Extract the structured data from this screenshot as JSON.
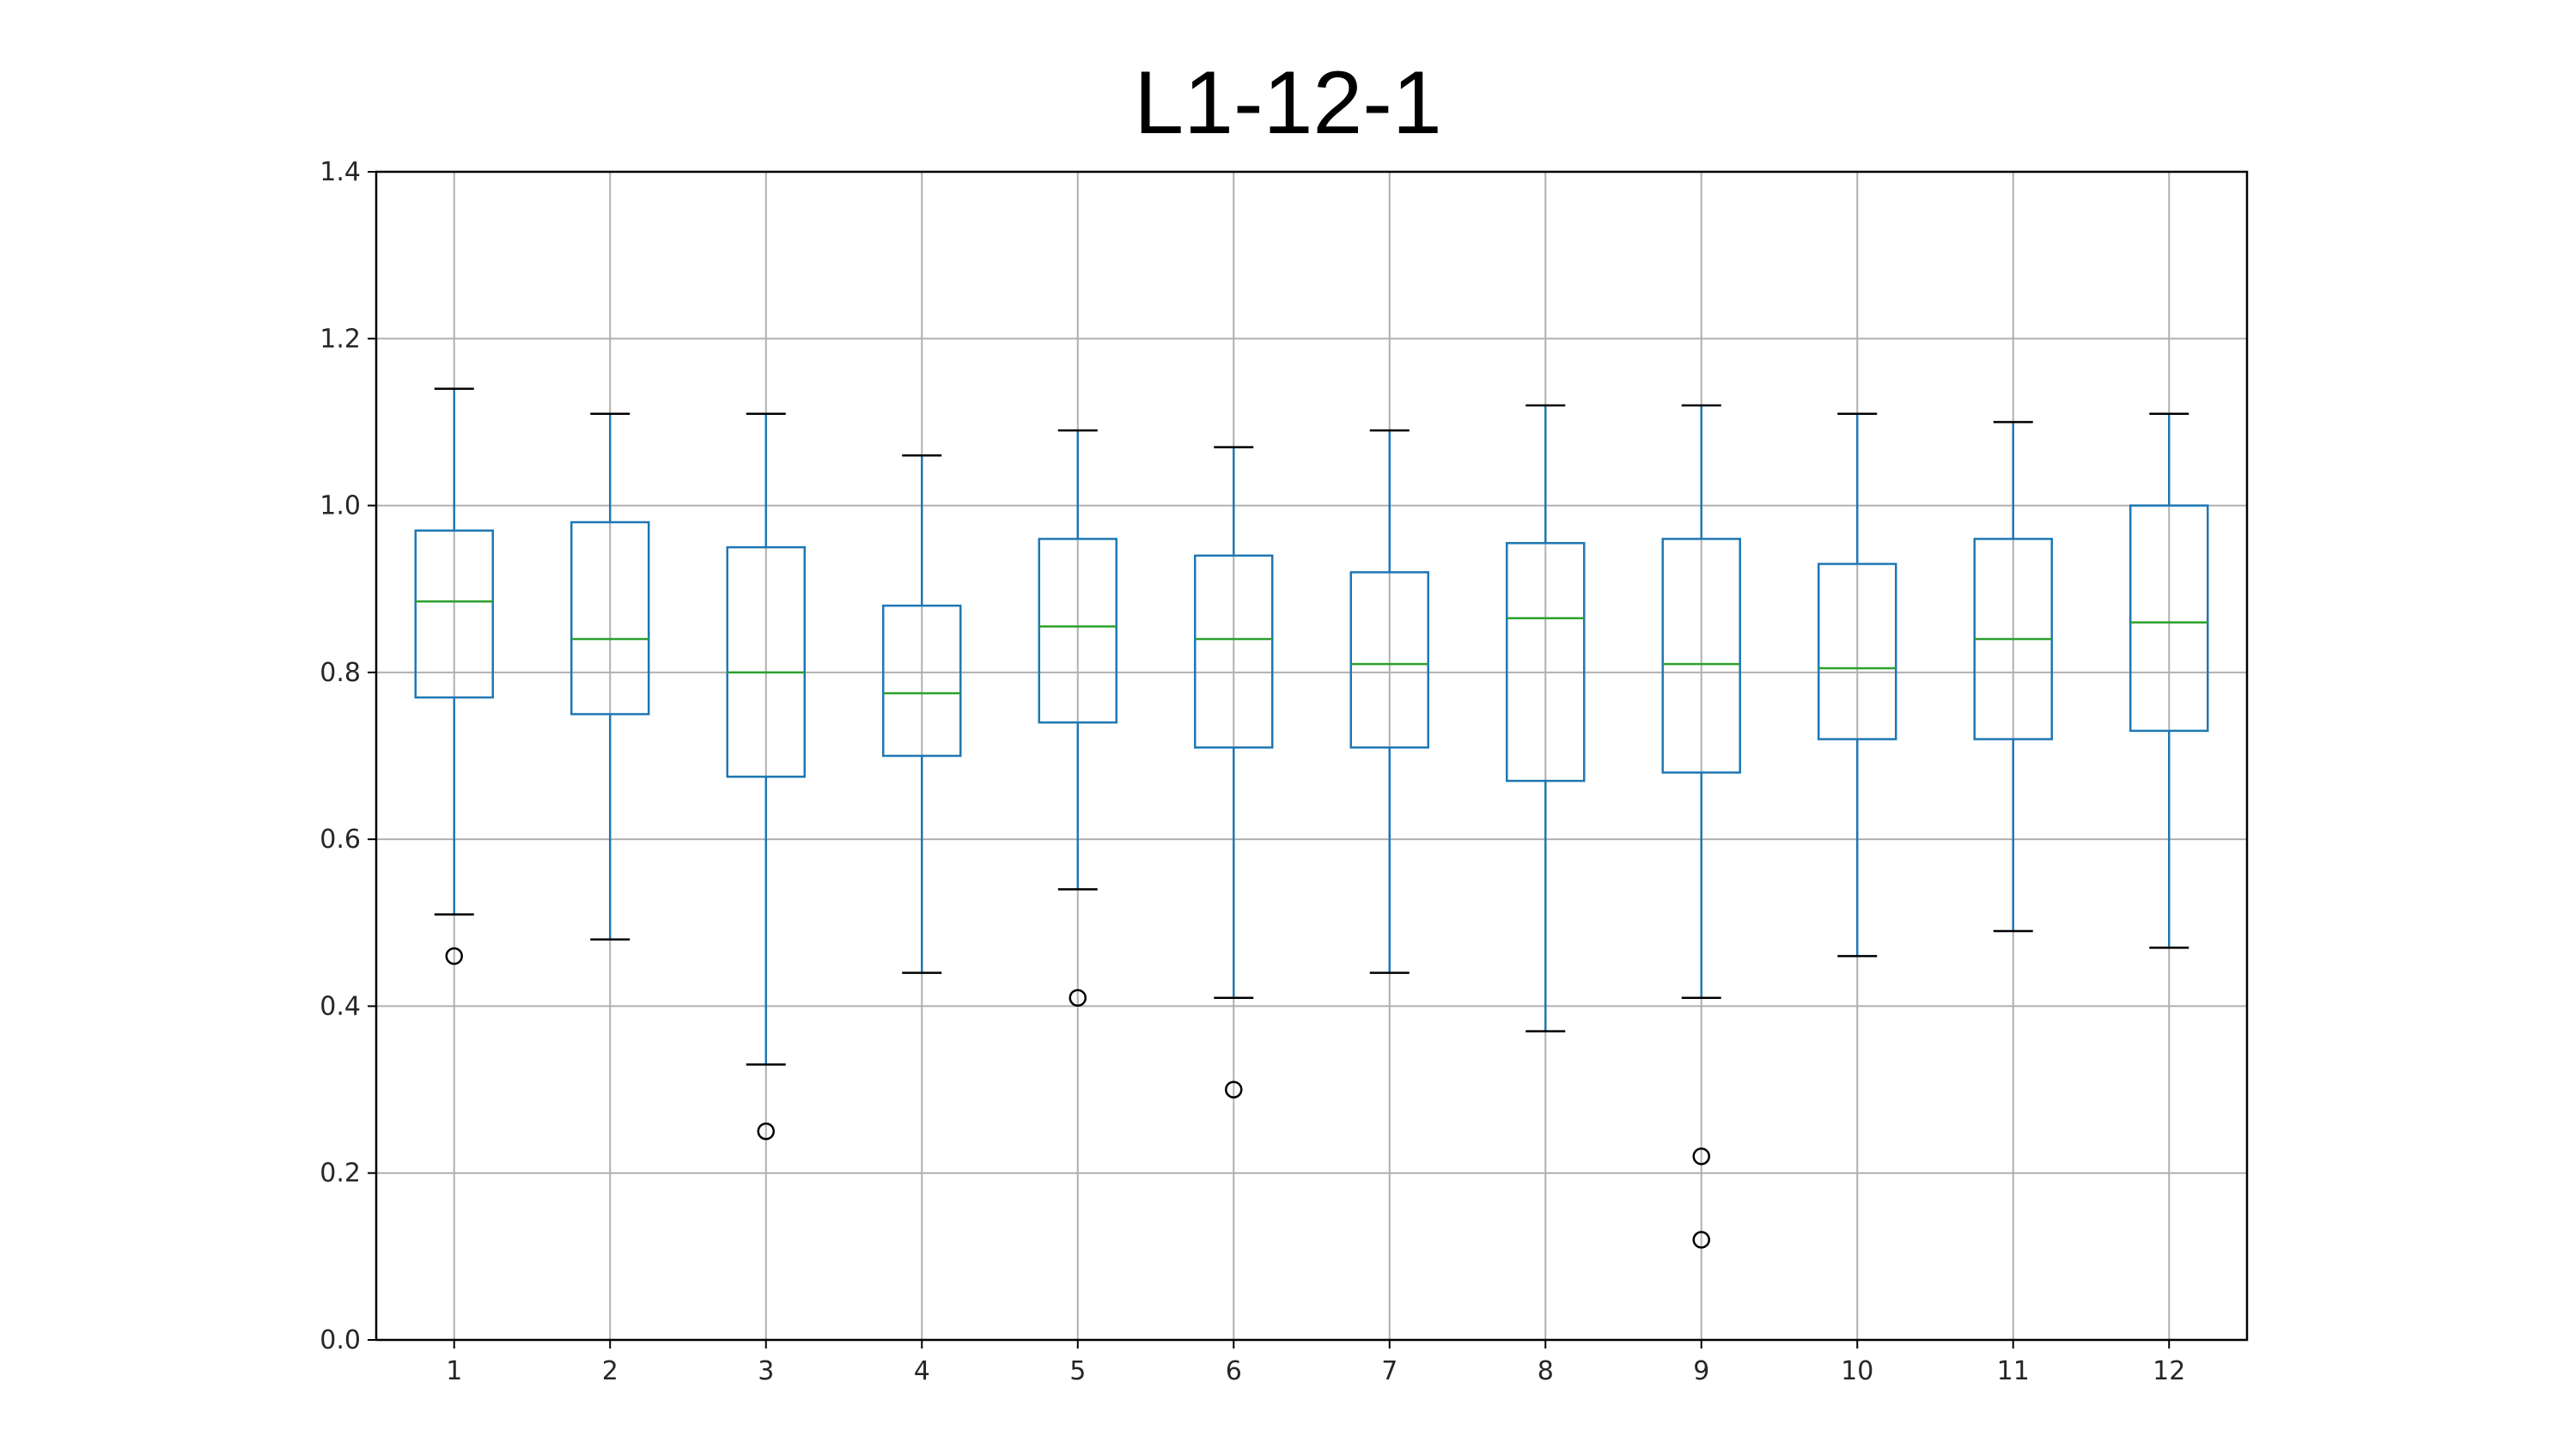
{
  "chart_data": {
    "type": "box",
    "title": "L1-12-1",
    "xlabel": "",
    "ylabel": "",
    "ylim": [
      0,
      1.4
    ],
    "yticks": [
      "0.0",
      "0.2",
      "0.4",
      "0.6",
      "0.8",
      "1.0",
      "1.2",
      "1.4"
    ],
    "categories": [
      "1",
      "2",
      "3",
      "4",
      "5",
      "6",
      "7",
      "8",
      "9",
      "10",
      "11",
      "12"
    ],
    "grid": true,
    "boxes": [
      {
        "label": "1",
        "whisker_low": 0.51,
        "q1": 0.77,
        "median": 0.885,
        "q3": 0.97,
        "whisker_high": 1.14,
        "outliers": [
          0.46
        ]
      },
      {
        "label": "2",
        "whisker_low": 0.48,
        "q1": 0.75,
        "median": 0.84,
        "q3": 0.98,
        "whisker_high": 1.11,
        "outliers": []
      },
      {
        "label": "3",
        "whisker_low": 0.33,
        "q1": 0.675,
        "median": 0.8,
        "q3": 0.95,
        "whisker_high": 1.11,
        "outliers": [
          0.25
        ]
      },
      {
        "label": "4",
        "whisker_low": 0.44,
        "q1": 0.7,
        "median": 0.775,
        "q3": 0.88,
        "whisker_high": 1.06,
        "outliers": []
      },
      {
        "label": "5",
        "whisker_low": 0.54,
        "q1": 0.74,
        "median": 0.855,
        "q3": 0.96,
        "whisker_high": 1.09,
        "outliers": [
          0.41
        ]
      },
      {
        "label": "6",
        "whisker_low": 0.41,
        "q1": 0.71,
        "median": 0.84,
        "q3": 0.94,
        "whisker_high": 1.07,
        "outliers": [
          0.3
        ]
      },
      {
        "label": "7",
        "whisker_low": 0.44,
        "q1": 0.71,
        "median": 0.81,
        "q3": 0.92,
        "whisker_high": 1.09,
        "outliers": []
      },
      {
        "label": "8",
        "whisker_low": 0.37,
        "q1": 0.67,
        "median": 0.865,
        "q3": 0.955,
        "whisker_high": 1.12,
        "outliers": []
      },
      {
        "label": "9",
        "whisker_low": 0.41,
        "q1": 0.68,
        "median": 0.81,
        "q3": 0.96,
        "whisker_high": 1.12,
        "outliers": [
          0.22,
          0.12
        ]
      },
      {
        "label": "10",
        "whisker_low": 0.46,
        "q1": 0.72,
        "median": 0.805,
        "q3": 0.93,
        "whisker_high": 1.11,
        "outliers": []
      },
      {
        "label": "11",
        "whisker_low": 0.49,
        "q1": 0.72,
        "median": 0.84,
        "q3": 0.96,
        "whisker_high": 1.1,
        "outliers": []
      },
      {
        "label": "12",
        "whisker_low": 0.47,
        "q1": 0.73,
        "median": 0.86,
        "q3": 1.0,
        "whisker_high": 1.11,
        "outliers": []
      }
    ],
    "colors": {
      "box": "#1f77b4",
      "median": "#2ca02c",
      "whisker_cap": "#000000",
      "outlier": "#000000",
      "grid": "#b0b0b0",
      "axes": "#000000"
    }
  }
}
